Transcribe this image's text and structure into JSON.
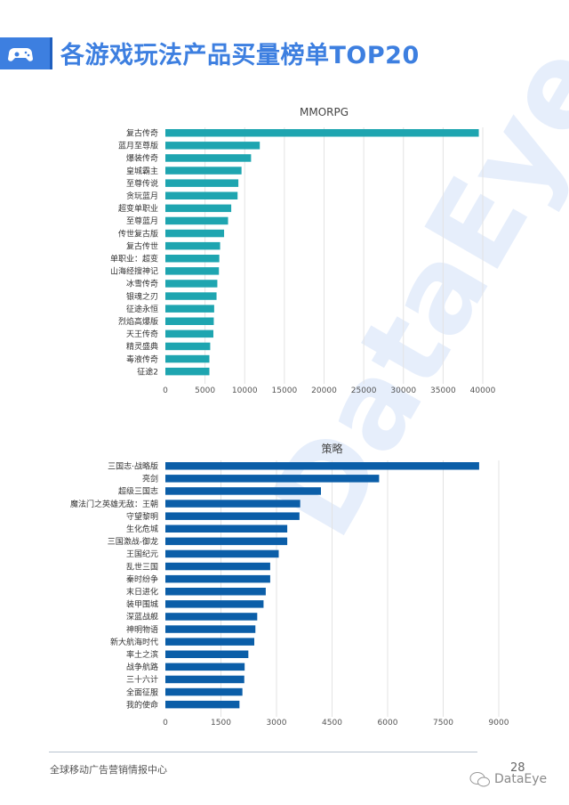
{
  "header": {
    "title": "各游戏玩法产品买量榜单TOP20",
    "icon": "gamepad-icon"
  },
  "watermark": "DataEye",
  "chart_data": [
    {
      "type": "bar",
      "orientation": "horizontal",
      "title": "MMORPG",
      "color": "#1ea5b0",
      "categories": [
        "复古传奇",
        "蓝月至尊版",
        "爆装传奇",
        "皇城霸主",
        "至尊传说",
        "贪玩蓝月",
        "超变单职业",
        "至尊蓝月",
        "传世复古版",
        "复古传世",
        "单职业：超变",
        "山海经搜神记",
        "冰雪传奇",
        "银魂之刃",
        "征途永恒",
        "烈焰高爆版",
        "天王传奇",
        "精灵盛典",
        "毒液传奇",
        "征途2"
      ],
      "values": [
        39500,
        11900,
        10800,
        9600,
        9200,
        9100,
        8300,
        7900,
        7400,
        6900,
        6800,
        6750,
        6550,
        6450,
        6150,
        6100,
        6050,
        5650,
        5550,
        5550
      ],
      "xlim": [
        0,
        40000
      ],
      "ticks": [
        "0",
        "5000",
        "10000",
        "15000",
        "20000",
        "25000",
        "30000",
        "35000",
        "40000"
      ],
      "grid": true
    },
    {
      "type": "bar",
      "orientation": "horizontal",
      "title": "策略",
      "color": "#0b5ea8",
      "categories": [
        "三国志·战略版",
        "亮剑",
        "超级三国志",
        "魔法门之英雄无敌：王朝",
        "守望黎明",
        "生化危城",
        "三国激战-御龙",
        "王国纪元",
        "乱世三国",
        "秦时纷争",
        "末日进化",
        "装甲围城",
        "深蓝战舰",
        "神明物语",
        "新大航海时代",
        "率土之滨",
        "战争航路",
        "三十六计",
        "全面征服",
        "我的使命"
      ],
      "values": [
        8470,
        5770,
        4200,
        3640,
        3620,
        3290,
        3290,
        3060,
        2830,
        2830,
        2710,
        2650,
        2480,
        2430,
        2400,
        2240,
        2140,
        2130,
        2080,
        2000
      ],
      "xlim": [
        0,
        9000
      ],
      "ticks": [
        "0",
        "1500",
        "3000",
        "4500",
        "6000",
        "7500",
        "9000"
      ],
      "grid": true
    }
  ],
  "footer": {
    "text": "全球移动广告营销情报中心",
    "page": "28",
    "brand": "DataEye",
    "brand_icon": "wechat-icon"
  }
}
